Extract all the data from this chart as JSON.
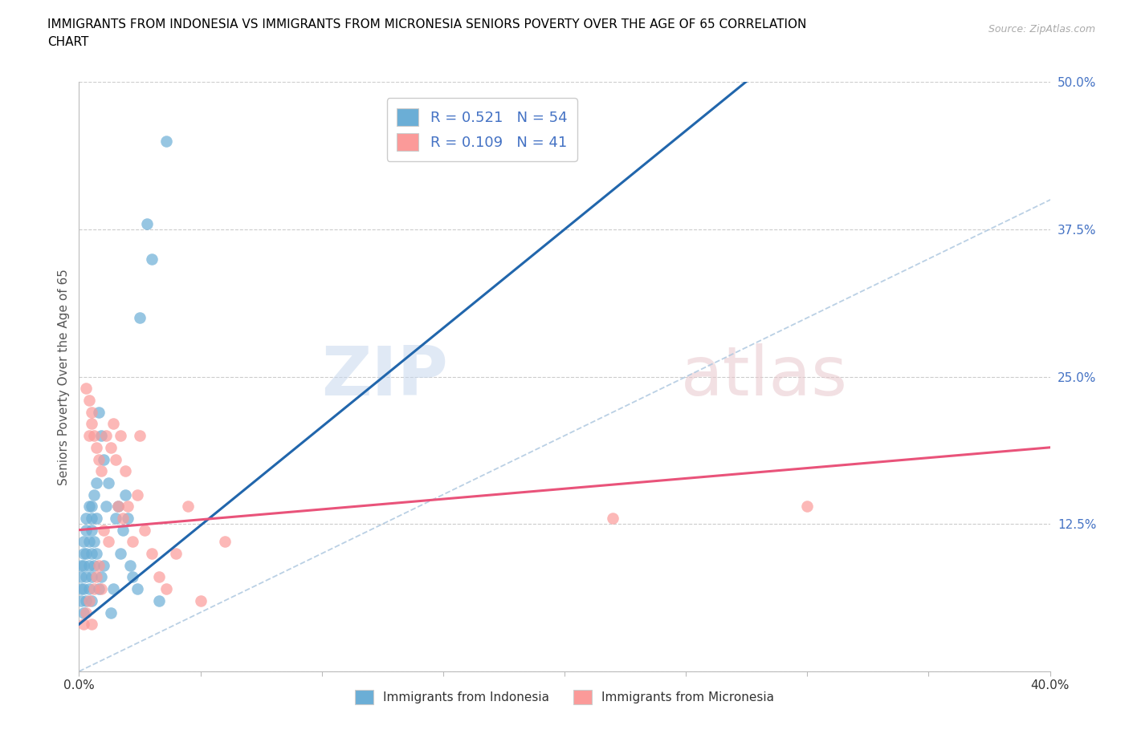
{
  "title_line1": "IMMIGRANTS FROM INDONESIA VS IMMIGRANTS FROM MICRONESIA SENIORS POVERTY OVER THE AGE OF 65 CORRELATION",
  "title_line2": "CHART",
  "source": "Source: ZipAtlas.com",
  "ylabel": "Seniors Poverty Over the Age of 65",
  "xlim": [
    0.0,
    0.4
  ],
  "ylim": [
    0.0,
    0.5
  ],
  "xticks": [
    0.0,
    0.05,
    0.1,
    0.15,
    0.2,
    0.25,
    0.3,
    0.35,
    0.4
  ],
  "yticks": [
    0.0,
    0.125,
    0.25,
    0.375,
    0.5
  ],
  "indonesia_color": "#6baed6",
  "micronesia_color": "#fb9a99",
  "indonesia_R": 0.521,
  "indonesia_N": 54,
  "micronesia_R": 0.109,
  "micronesia_N": 41,
  "trend_indonesia_color": "#2166ac",
  "trend_micronesia_color": "#e9537a",
  "diagonal_color": "#aec8e0",
  "background_color": "#ffffff",
  "grid_color": "#cccccc",
  "title_color": "#000000",
  "axis_label_color": "#555555",
  "right_tick_color": "#4472c4",
  "legend_color": "#4472c4",
  "indonesia_x": [
    0.001,
    0.001,
    0.001,
    0.001,
    0.002,
    0.002,
    0.002,
    0.002,
    0.002,
    0.003,
    0.003,
    0.003,
    0.003,
    0.003,
    0.004,
    0.004,
    0.004,
    0.004,
    0.005,
    0.005,
    0.005,
    0.005,
    0.005,
    0.005,
    0.006,
    0.006,
    0.006,
    0.007,
    0.007,
    0.007,
    0.008,
    0.008,
    0.009,
    0.009,
    0.01,
    0.01,
    0.011,
    0.012,
    0.013,
    0.014,
    0.015,
    0.016,
    0.017,
    0.018,
    0.019,
    0.02,
    0.021,
    0.022,
    0.024,
    0.025,
    0.028,
    0.03,
    0.033,
    0.036
  ],
  "indonesia_y": [
    0.06,
    0.07,
    0.08,
    0.09,
    0.05,
    0.07,
    0.09,
    0.1,
    0.11,
    0.06,
    0.08,
    0.1,
    0.12,
    0.13,
    0.07,
    0.09,
    0.11,
    0.14,
    0.06,
    0.08,
    0.1,
    0.12,
    0.13,
    0.14,
    0.09,
    0.11,
    0.15,
    0.1,
    0.13,
    0.16,
    0.07,
    0.22,
    0.08,
    0.2,
    0.09,
    0.18,
    0.14,
    0.16,
    0.05,
    0.07,
    0.13,
    0.14,
    0.1,
    0.12,
    0.15,
    0.13,
    0.09,
    0.08,
    0.07,
    0.3,
    0.38,
    0.35,
    0.06,
    0.45
  ],
  "micronesia_x": [
    0.002,
    0.003,
    0.003,
    0.004,
    0.004,
    0.004,
    0.005,
    0.005,
    0.005,
    0.006,
    0.006,
    0.007,
    0.007,
    0.008,
    0.008,
    0.009,
    0.009,
    0.01,
    0.011,
    0.012,
    0.013,
    0.014,
    0.015,
    0.016,
    0.017,
    0.018,
    0.019,
    0.02,
    0.022,
    0.024,
    0.025,
    0.027,
    0.03,
    0.033,
    0.036,
    0.04,
    0.045,
    0.05,
    0.06,
    0.22,
    0.3
  ],
  "micronesia_y": [
    0.04,
    0.05,
    0.24,
    0.06,
    0.2,
    0.23,
    0.04,
    0.22,
    0.21,
    0.07,
    0.2,
    0.08,
    0.19,
    0.09,
    0.18,
    0.07,
    0.17,
    0.12,
    0.2,
    0.11,
    0.19,
    0.21,
    0.18,
    0.14,
    0.2,
    0.13,
    0.17,
    0.14,
    0.11,
    0.15,
    0.2,
    0.12,
    0.1,
    0.08,
    0.07,
    0.1,
    0.14,
    0.06,
    0.11,
    0.13,
    0.14
  ]
}
